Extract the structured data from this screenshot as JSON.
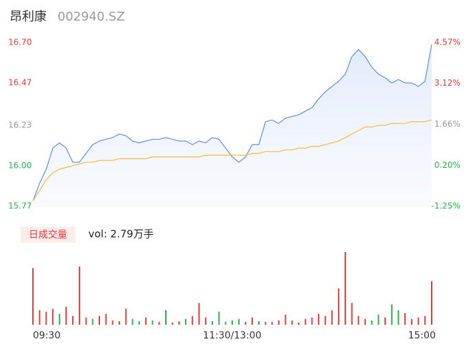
{
  "chart_data": {
    "type": "line",
    "title": "昂利康",
    "subtitle": "002940.SZ",
    "xlim": [
      0,
      240
    ],
    "xticks": [
      {
        "value": 0,
        "label": "09:30"
      },
      {
        "value": 120,
        "label": "11:30/13:00"
      },
      {
        "value": 240,
        "label": "15:00"
      }
    ],
    "ylim": [
      15.77,
      16.7
    ],
    "yticks": [
      {
        "value": 16.7,
        "label": "16.70"
      },
      16.47,
      16.23,
      {
        "value": 16,
        "label": "16.00"
      },
      15.77
    ],
    "ytick_colors": [
      "#e83a3a",
      "#e83a3a",
      "#999999",
      "#2ab04a",
      "#2ab04a"
    ],
    "y2lim": [
      -1.25,
      4.57
    ],
    "y2ticks": [
      {
        "value": 4.57,
        "label": "4.57%"
      },
      {
        "value": 3.12,
        "label": "3.12%"
      },
      {
        "value": 1.66,
        "label": "1.66%"
      },
      {
        "value": 0.2,
        "label": "0.20%"
      },
      {
        "value": -1.25,
        "label": "-1.25%"
      }
    ],
    "y2tick_colors": [
      "#e83a3a",
      "#e83a3a",
      "#999999",
      "#2ab04a",
      "#2ab04a"
    ],
    "x": [
      0,
      4,
      8,
      12,
      16,
      20,
      24,
      28,
      32,
      36,
      40,
      44,
      48,
      52,
      56,
      60,
      64,
      68,
      72,
      76,
      80,
      84,
      88,
      92,
      96,
      100,
      104,
      108,
      112,
      116,
      120,
      124,
      128,
      132,
      136,
      140,
      144,
      148,
      152,
      156,
      160,
      164,
      168,
      172,
      176,
      180,
      184,
      188,
      192,
      196,
      200,
      204,
      208,
      212,
      216,
      220,
      224,
      228,
      232,
      236,
      240
    ],
    "series": [
      {
        "color": "#5b8ee6",
        "fill": true,
        "values": [
          15.8,
          15.9,
          15.98,
          16.1,
          16.13,
          16.1,
          16.02,
          16.02,
          16.07,
          16.12,
          16.14,
          16.15,
          16.16,
          16.18,
          16.17,
          16.14,
          16.13,
          16.14,
          16.15,
          16.15,
          16.16,
          16.15,
          16.14,
          16.14,
          16.12,
          16.14,
          16.13,
          16.16,
          16.15,
          16.1,
          16.05,
          16.02,
          16.05,
          16.12,
          16.12,
          16.25,
          16.26,
          16.24,
          16.27,
          16.28,
          16.29,
          16.31,
          16.33,
          16.38,
          16.42,
          16.45,
          16.48,
          16.52,
          16.62,
          16.66,
          16.62,
          16.56,
          16.52,
          16.5,
          16.47,
          16.49,
          16.47,
          16.47,
          16.45,
          16.48,
          16.69
        ]
      },
      {
        "color": "#f5b942",
        "fill": false,
        "values": [
          15.8,
          15.86,
          15.92,
          15.96,
          15.98,
          15.99,
          16,
          16.01,
          16.02,
          16.02,
          16.03,
          16.03,
          16.03,
          16.04,
          16.04,
          16.04,
          16.04,
          16.04,
          16.05,
          16.05,
          16.05,
          16.05,
          16.05,
          16.05,
          16.05,
          16.05,
          16.06,
          16.06,
          16.06,
          16.06,
          16.06,
          16.06,
          16.06,
          16.07,
          16.07,
          16.08,
          16.08,
          16.08,
          16.09,
          16.09,
          16.1,
          16.1,
          16.11,
          16.11,
          16.12,
          16.13,
          16.14,
          16.16,
          16.18,
          16.2,
          16.22,
          16.22,
          16.23,
          16.23,
          16.24,
          16.24,
          16.24,
          16.25,
          16.25,
          16.25,
          16.26
        ]
      }
    ],
    "volume": {
      "label": "日成交量",
      "summary": "vol: 2.79万手",
      "ylim": [
        0,
        100
      ],
      "values": [
        78,
        20,
        18,
        22,
        15,
        25,
        12,
        80,
        10,
        8,
        12,
        15,
        6,
        5,
        22,
        8,
        5,
        10,
        6,
        4,
        20,
        3,
        5,
        8,
        12,
        30,
        10,
        5,
        18,
        4,
        6,
        8,
        4,
        10,
        5,
        4,
        4,
        6,
        14,
        6,
        3,
        8,
        10,
        15,
        12,
        20,
        50,
        100,
        30,
        12,
        8,
        6,
        14,
        10,
        28,
        20,
        16,
        8,
        10,
        12,
        60
      ],
      "colors": [
        "#e83a3a",
        "#e83a3a",
        "#e83a3a",
        "#e83a3a",
        "#2ab04a",
        "#e83a3a",
        "#e83a3a",
        "#e83a3a",
        "#e83a3a",
        "#2ab04a",
        "#e83a3a",
        "#e83a3a",
        "#e83a3a",
        "#e83a3a",
        "#e83a3a",
        "#2ab04a",
        "#2ab04a",
        "#e83a3a",
        "#2ab04a",
        "#e83a3a",
        "#2ab04a",
        "#e83a3a",
        "#e83a3a",
        "#2ab04a",
        "#e83a3a",
        "#e83a3a",
        "#e83a3a",
        "#2ab04a",
        "#2ab04a",
        "#2ab04a",
        "#2ab04a",
        "#2ab04a",
        "#e83a3a",
        "#e83a3a",
        "#2ab04a",
        "#e83a3a",
        "#e83a3a",
        "#e83a3a",
        "#e83a3a",
        "#e83a3a",
        "#e83a3a",
        "#e83a3a",
        "#e83a3a",
        "#e83a3a",
        "#e83a3a",
        "#e83a3a",
        "#e83a3a",
        "#e83a3a",
        "#e83a3a",
        "#e83a3a",
        "#e83a3a",
        "#2ab04a",
        "#2ab04a",
        "#e83a3a",
        "#2ab04a",
        "#2ab04a",
        "#e83a3a",
        "#e83a3a",
        "#e83a3a",
        "#e83a3a",
        "#e83a3a"
      ]
    }
  }
}
